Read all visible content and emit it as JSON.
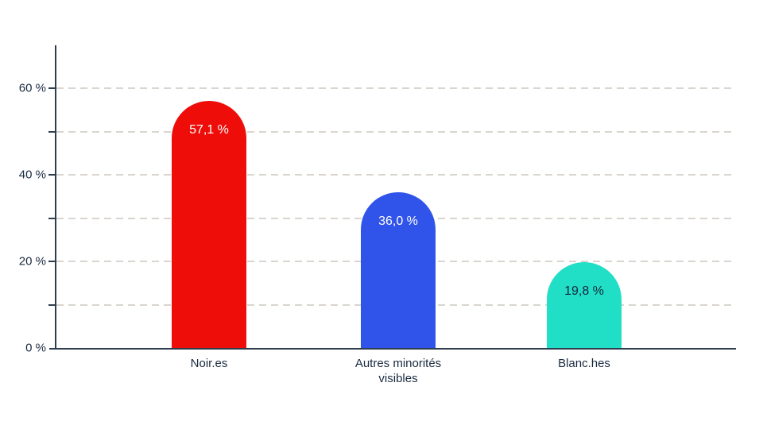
{
  "chart_data": {
    "type": "bar",
    "title": "",
    "xlabel": "",
    "ylabel": "",
    "categories": [
      "Noir.es",
      "Autres minorités\nvisibles",
      "Blanc.hes"
    ],
    "values": [
      57.1,
      36.0,
      19.8
    ],
    "value_labels": [
      "57,1 %",
      "36,0 %",
      "19,8 %"
    ],
    "value_label_colors": [
      "#ffffff",
      "#ffffff",
      "#16283c"
    ],
    "bar_colors": [
      "#ee0d09",
      "#3054e9",
      "#21dec6"
    ],
    "ylim": [
      0,
      70
    ],
    "yticks": [
      0,
      10,
      20,
      30,
      40,
      50,
      60
    ],
    "ytick_labels": [
      "0 %",
      "",
      "20 %",
      "",
      "40 %",
      "",
      "60 %"
    ],
    "grid": "horizontal dashed lines every 10%",
    "legend": "none"
  },
  "style": {
    "axis_color": "#2f3e4d",
    "grid_color": "#d9d5cf",
    "text_color": "#1b2b40",
    "background": "#ffffff"
  }
}
